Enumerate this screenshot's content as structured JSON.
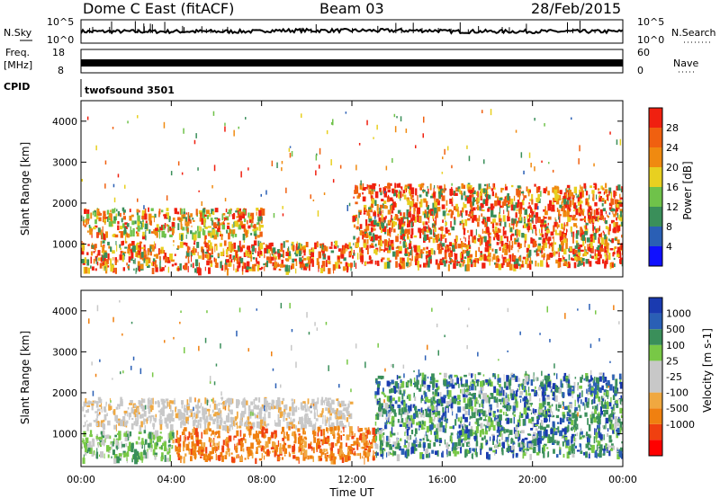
{
  "header": {
    "title": "Dome C East (fitACF)",
    "beam": "Beam 03",
    "date": "28/Feb/2015"
  },
  "labels": {
    "nsky": "N.Sky",
    "nsearch": "N.Search",
    "freq": "Freq.",
    "mhz": "[MHz]",
    "nave": "Nave",
    "cpid": "CPID",
    "cpid_value": "twofsound 3501",
    "xlabel": "Time UT",
    "ylabel": "Slant Range [km]"
  },
  "noise_panel": {
    "left_ticks": [
      "10^5",
      "10^0"
    ],
    "right_ticks": [
      "10^5",
      "10^0"
    ]
  },
  "freq_panel": {
    "left_ticks": [
      "18",
      "8"
    ],
    "right_ticks": [
      "60",
      "0"
    ]
  },
  "colors": {
    "power": [
      "#1010ff",
      "#2a5fb5",
      "#3a8f5a",
      "#6fc24a",
      "#e8d020",
      "#f08a10",
      "#f06010",
      "#f02010"
    ],
    "velocity": [
      "#ff0000",
      "#f04010",
      "#f08010",
      "#f0a840",
      "#c8c8c8",
      "#c8c8c8",
      "#78c846",
      "#3a8f5a",
      "#2a5fb5",
      "#1a3ab0"
    ]
  },
  "chart_data": [
    {
      "type": "heatmap",
      "name": "Power",
      "xlabel": "Time UT",
      "ylabel": "Slant Range [km]",
      "xticks": [
        "00:00",
        "04:00",
        "08:00",
        "12:00",
        "16:00",
        "20:00",
        "00:00"
      ],
      "xlim_hours": [
        0,
        24
      ],
      "ylim_km": [
        200,
        4500
      ],
      "yticks": [
        1000,
        2000,
        3000,
        4000
      ],
      "colorbar": {
        "label": "Power [dB]",
        "ticks": [
          4,
          8,
          12,
          16,
          20,
          24,
          28
        ],
        "range": [
          0,
          32
        ]
      },
      "echo_bands": [
        {
          "t_start": 0,
          "t_end": 12,
          "r_min": 400,
          "r_max": 1100,
          "dominant": "red/orange"
        },
        {
          "t_start": 0,
          "t_end": 8,
          "r_min": 1200,
          "r_max": 1900,
          "dominant": "red/green"
        },
        {
          "t_start": 12,
          "t_end": 24,
          "r_min": 500,
          "r_max": 2500,
          "dominant": "red/orange"
        }
      ]
    },
    {
      "type": "heatmap",
      "name": "Velocity",
      "xlabel": "Time UT",
      "ylabel": "Slant Range [km]",
      "xticks": [
        "00:00",
        "04:00",
        "08:00",
        "12:00",
        "16:00",
        "20:00",
        "00:00"
      ],
      "xlim_hours": [
        0,
        24
      ],
      "ylim_km": [
        200,
        4500
      ],
      "yticks": [
        1000,
        2000,
        3000,
        4000
      ],
      "colorbar": {
        "label": "Velocity [m s-1]",
        "ticks": [
          1000,
          500,
          100,
          25,
          -25,
          -100,
          -500,
          -1000
        ]
      },
      "echo_bands": [
        {
          "t_start": 0,
          "t_end": 4,
          "r_min": 400,
          "r_max": 1100,
          "dominant": "green"
        },
        {
          "t_start": 0,
          "t_end": 12,
          "r_min": 1200,
          "r_max": 1900,
          "dominant": "grey"
        },
        {
          "t_start": 4,
          "t_end": 13,
          "r_min": 400,
          "r_max": 1200,
          "dominant": "orange"
        },
        {
          "t_start": 13,
          "t_end": 24,
          "r_min": 500,
          "r_max": 2500,
          "dominant": "green/blue"
        }
      ]
    }
  ]
}
